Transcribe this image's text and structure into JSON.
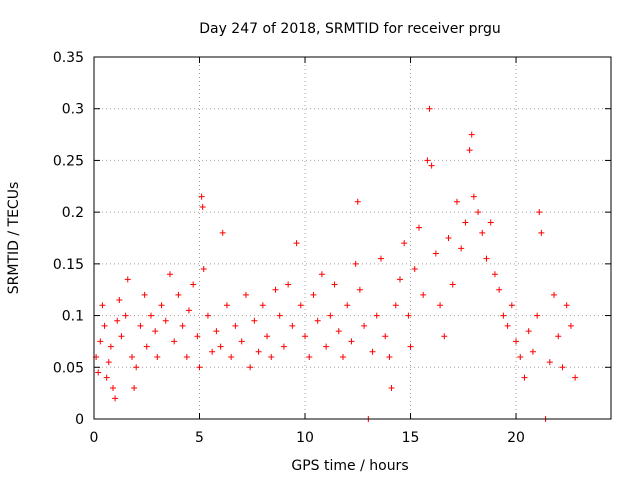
{
  "chart_data": {
    "type": "scatter",
    "title": "Day 247 of 2018, SRMTID for receiver prgu",
    "xlabel": "GPS time / hours",
    "ylabel": "SRMTID / TECUs",
    "xlim": [
      0,
      24.5
    ],
    "ylim": [
      0,
      0.35
    ],
    "xticks": [
      0,
      5,
      10,
      15,
      20
    ],
    "xtick_labels": [
      "0",
      "5",
      "10",
      "15",
      "20"
    ],
    "yticks": [
      0,
      0.05,
      0.1,
      0.15,
      0.2,
      0.25,
      0.3,
      0.35
    ],
    "ytick_labels": [
      "0",
      "0.05",
      "0.1",
      "0.15",
      "0.2",
      "0.25",
      "0.3",
      "0.35"
    ],
    "grid": true,
    "marker": "+",
    "color": "#ff0000",
    "series": [
      {
        "name": "SRMTID",
        "points": [
          [
            0.1,
            0.06
          ],
          [
            0.2,
            0.045
          ],
          [
            0.3,
            0.075
          ],
          [
            0.4,
            0.11
          ],
          [
            0.5,
            0.09
          ],
          [
            0.6,
            0.04
          ],
          [
            0.7,
            0.055
          ],
          [
            0.8,
            0.07
          ],
          [
            0.9,
            0.03
          ],
          [
            1.0,
            0.02
          ],
          [
            1.1,
            0.095
          ],
          [
            1.2,
            0.115
          ],
          [
            1.3,
            0.08
          ],
          [
            1.5,
            0.1
          ],
          [
            1.6,
            0.135
          ],
          [
            1.8,
            0.06
          ],
          [
            1.9,
            0.03
          ],
          [
            2.0,
            0.05
          ],
          [
            2.2,
            0.09
          ],
          [
            2.4,
            0.12
          ],
          [
            2.5,
            0.07
          ],
          [
            2.7,
            0.1
          ],
          [
            2.9,
            0.085
          ],
          [
            3.0,
            0.06
          ],
          [
            3.2,
            0.11
          ],
          [
            3.4,
            0.095
          ],
          [
            3.6,
            0.14
          ],
          [
            3.8,
            0.075
          ],
          [
            4.0,
            0.12
          ],
          [
            4.2,
            0.09
          ],
          [
            4.4,
            0.06
          ],
          [
            4.5,
            0.105
          ],
          [
            4.7,
            0.13
          ],
          [
            4.9,
            0.08
          ],
          [
            5.0,
            0.05
          ],
          [
            5.1,
            0.215
          ],
          [
            5.15,
            0.205
          ],
          [
            5.2,
            0.145
          ],
          [
            5.4,
            0.1
          ],
          [
            5.6,
            0.065
          ],
          [
            5.8,
            0.085
          ],
          [
            6.0,
            0.07
          ],
          [
            6.1,
            0.18
          ],
          [
            6.3,
            0.11
          ],
          [
            6.5,
            0.06
          ],
          [
            6.7,
            0.09
          ],
          [
            7.0,
            0.075
          ],
          [
            7.2,
            0.12
          ],
          [
            7.4,
            0.05
          ],
          [
            7.6,
            0.095
          ],
          [
            7.8,
            0.065
          ],
          [
            8.0,
            0.11
          ],
          [
            8.2,
            0.08
          ],
          [
            8.4,
            0.06
          ],
          [
            8.6,
            0.125
          ],
          [
            8.8,
            0.1
          ],
          [
            9.0,
            0.07
          ],
          [
            9.2,
            0.13
          ],
          [
            9.4,
            0.09
          ],
          [
            9.6,
            0.17
          ],
          [
            9.8,
            0.11
          ],
          [
            10.0,
            0.08
          ],
          [
            10.2,
            0.06
          ],
          [
            10.4,
            0.12
          ],
          [
            10.6,
            0.095
          ],
          [
            10.8,
            0.14
          ],
          [
            11.0,
            0.07
          ],
          [
            11.2,
            0.1
          ],
          [
            11.4,
            0.13
          ],
          [
            11.6,
            0.085
          ],
          [
            11.8,
            0.06
          ],
          [
            12.0,
            0.11
          ],
          [
            12.2,
            0.075
          ],
          [
            12.4,
            0.15
          ],
          [
            12.5,
            0.21
          ],
          [
            12.6,
            0.125
          ],
          [
            12.8,
            0.09
          ],
          [
            13.0,
            0.0
          ],
          [
            13.2,
            0.065
          ],
          [
            13.4,
            0.1
          ],
          [
            13.6,
            0.155
          ],
          [
            13.8,
            0.08
          ],
          [
            14.0,
            0.06
          ],
          [
            14.1,
            0.03
          ],
          [
            14.3,
            0.11
          ],
          [
            14.5,
            0.135
          ],
          [
            14.7,
            0.17
          ],
          [
            14.9,
            0.1
          ],
          [
            15.0,
            0.07
          ],
          [
            15.2,
            0.145
          ],
          [
            15.4,
            0.185
          ],
          [
            15.6,
            0.12
          ],
          [
            15.8,
            0.25
          ],
          [
            15.9,
            0.3
          ],
          [
            16.0,
            0.245
          ],
          [
            16.2,
            0.16
          ],
          [
            16.4,
            0.11
          ],
          [
            16.6,
            0.08
          ],
          [
            16.8,
            0.175
          ],
          [
            17.0,
            0.13
          ],
          [
            17.2,
            0.21
          ],
          [
            17.4,
            0.165
          ],
          [
            17.6,
            0.19
          ],
          [
            17.8,
            0.26
          ],
          [
            17.9,
            0.275
          ],
          [
            18.0,
            0.215
          ],
          [
            18.2,
            0.2
          ],
          [
            18.4,
            0.18
          ],
          [
            18.6,
            0.155
          ],
          [
            18.8,
            0.19
          ],
          [
            19.0,
            0.14
          ],
          [
            19.2,
            0.125
          ],
          [
            19.4,
            0.1
          ],
          [
            19.6,
            0.09
          ],
          [
            19.8,
            0.11
          ],
          [
            20.0,
            0.075
          ],
          [
            20.2,
            0.06
          ],
          [
            20.4,
            0.04
          ],
          [
            20.6,
            0.085
          ],
          [
            20.8,
            0.065
          ],
          [
            21.0,
            0.1
          ],
          [
            21.1,
            0.2
          ],
          [
            21.2,
            0.18
          ],
          [
            21.4,
            0.0
          ],
          [
            21.6,
            0.055
          ],
          [
            21.8,
            0.12
          ],
          [
            22.0,
            0.08
          ],
          [
            22.2,
            0.05
          ],
          [
            22.4,
            0.11
          ],
          [
            22.6,
            0.09
          ],
          [
            22.8,
            0.04
          ]
        ]
      }
    ]
  }
}
